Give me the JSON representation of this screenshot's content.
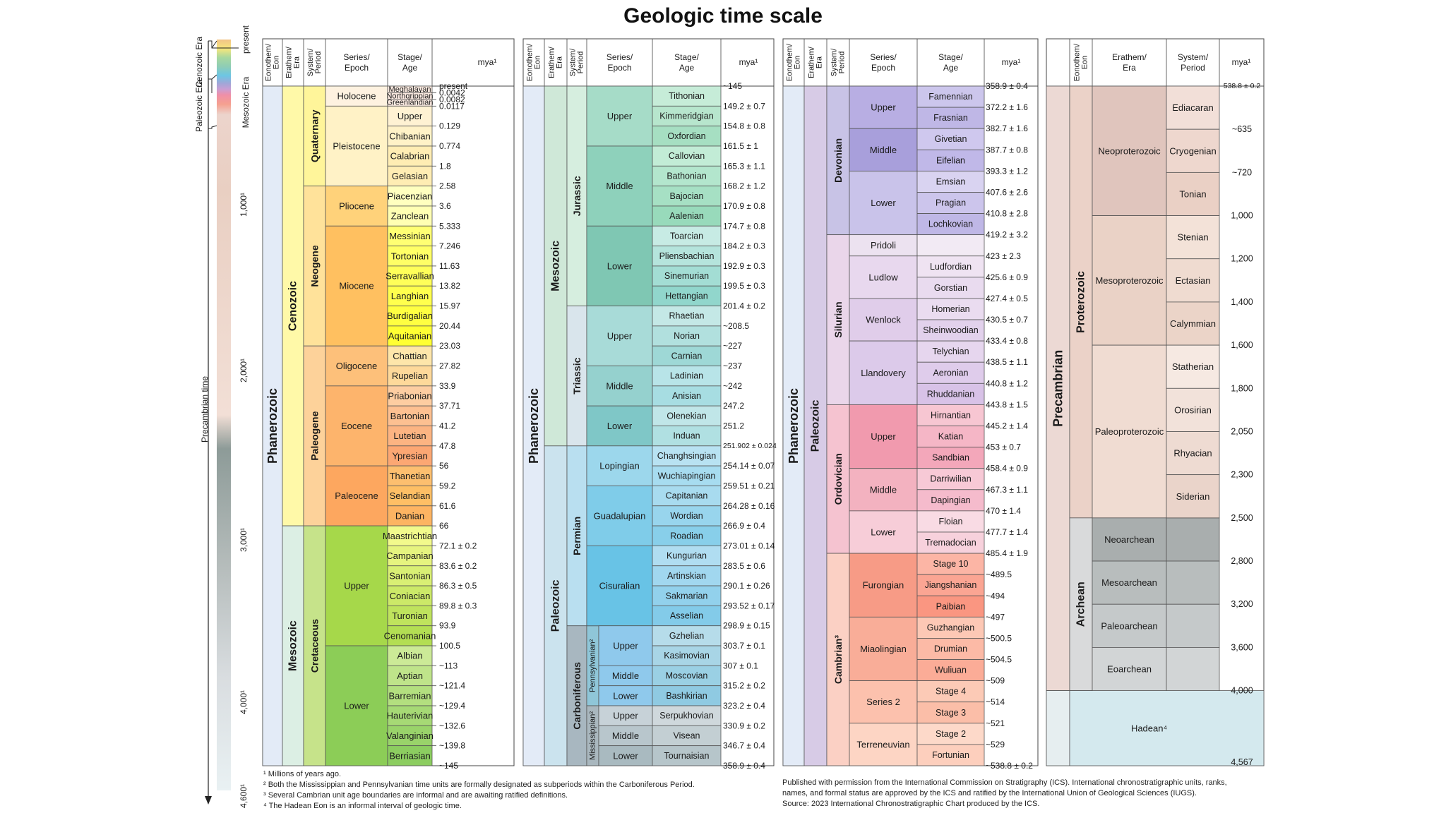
{
  "title": "Geologic time scale",
  "footnotes": [
    "¹ Millions of years ago.",
    "² Both the Mississippian and Pennsylvanian time units are formally designated as subperiods within the Carboniferous Period.",
    "³ Several Cambrian unit age boundaries are informal and are awaiting ratified definitions.",
    "⁴ The Hadean Eon is an informal interval of geologic time."
  ],
  "credits": [
    "Published with permission from the International Commission on Stratigraphy (ICS). International chronostratigraphic units, ranks,",
    "names, and formal status are approved by the ICS and ratified by the International Union of Geological Sciences (IUGS).",
    "Source: 2023 International Chronostratigraphic Chart produced by the ICS."
  ],
  "headers": {
    "eon": [
      "Eonothem/",
      "Eon"
    ],
    "era": [
      "Erathem/",
      "Era"
    ],
    "period": [
      "System/",
      "Period"
    ],
    "epoch": [
      "Series/",
      "Epoch"
    ],
    "stage": [
      "Stage/",
      "Age"
    ],
    "mya": "mya¹"
  },
  "timeline": {
    "eras": [
      "Cenozoic Era",
      "Mesozoic Era",
      "Paleozoic Era",
      "Precambrian time"
    ],
    "present": "present",
    "ticks": [
      "1,000¹",
      "2,000¹",
      "3,000¹",
      "4,000¹",
      "4,600¹"
    ],
    "colors": [
      "#f2c488",
      "#f7e67c",
      "#a7d89f",
      "#8fcdb5",
      "#6cc6e4",
      "#9fa7d8",
      "#c89ed4",
      "#f08fa7",
      "#f5a08f",
      "#ecd4cc"
    ]
  },
  "col1": {
    "eon": "Phanerozoic",
    "eras": [
      {
        "name": "Cenozoic",
        "from": 0,
        "to": 22
      },
      {
        "name": "Mesozoic",
        "from": 22,
        "to": 34
      }
    ],
    "periods": [
      {
        "name": "Quaternary",
        "from": 0,
        "to": 5
      },
      {
        "name": "Neogene",
        "from": 5,
        "to": 13
      },
      {
        "name": "Paleogene",
        "from": 13,
        "to": 22
      },
      {
        "name": "Cretaceous",
        "from": 22,
        "to": 34
      }
    ],
    "epochs": [
      {
        "name": "Holocene",
        "from": 0,
        "to": 1,
        "color": "#fef2e0"
      },
      {
        "name": "Pleistocene",
        "from": 1,
        "to": 5,
        "color": "#fff2c6"
      },
      {
        "name": "Pliocene",
        "from": 5,
        "to": 7,
        "color": "#ffd27a"
      },
      {
        "name": "Miocene",
        "from": 7,
        "to": 13,
        "color": "#ffc060"
      },
      {
        "name": "Oligocene",
        "from": 13,
        "to": 15,
        "color": "#fdc07a"
      },
      {
        "name": "Eocene",
        "from": 15,
        "to": 19,
        "color": "#fdb46c"
      },
      {
        "name": "Paleocene",
        "from": 19,
        "to": 22,
        "color": "#fda75f"
      },
      {
        "name": "Upper",
        "from": 22,
        "to": 28,
        "color": "#a6d84a"
      },
      {
        "name": "Lower",
        "from": 28,
        "to": 34,
        "color": "#8ccd57"
      }
    ],
    "stages": [
      {
        "name": "Meghalayan",
        "color": "#fdede3",
        "h": 0.34
      },
      {
        "name": "Northgrippian",
        "color": "#fdece3",
        "h": 0.33
      },
      {
        "name": "Greenlandian",
        "color": "#fdece3",
        "h": 0.33
      },
      {
        "name": "Upper",
        "color": "#fff2d3"
      },
      {
        "name": "Chibanian",
        "color": "#fff2c7"
      },
      {
        "name": "Calabrian",
        "color": "#ffedb3"
      },
      {
        "name": "Gelasian",
        "color": "#ffedb3"
      },
      {
        "name": "Piacenzian",
        "color": "#ffffbf"
      },
      {
        "name": "Zanclean",
        "color": "#ffffb3"
      },
      {
        "name": "Messinian",
        "color": "#ffff73"
      },
      {
        "name": "Tortonian",
        "color": "#ffff66"
      },
      {
        "name": "Serravallian",
        "color": "#ffff59"
      },
      {
        "name": "Langhian",
        "color": "#ffff4d"
      },
      {
        "name": "Burdigalian",
        "color": "#ffff41"
      },
      {
        "name": "Aquitanian",
        "color": "#ffff33"
      },
      {
        "name": "Chattian",
        "color": "#fee6aa"
      },
      {
        "name": "Rupelian",
        "color": "#fed99a"
      },
      {
        "name": "Priabonian",
        "color": "#fdcda1"
      },
      {
        "name": "Bartonian",
        "color": "#fdc091"
      },
      {
        "name": "Lutetian",
        "color": "#fcb482"
      },
      {
        "name": "Ypresian",
        "color": "#fca773"
      },
      {
        "name": "Thanetian",
        "color": "#fdbf6f"
      },
      {
        "name": "Selandian",
        "color": "#febf65"
      },
      {
        "name": "Danian",
        "color": "#fdb462"
      },
      {
        "name": "Maastrichtian",
        "color": "#f2fa8c"
      },
      {
        "name": "Campanian",
        "color": "#e6f47f"
      },
      {
        "name": "Santonian",
        "color": "#d9ef74"
      },
      {
        "name": "Coniacian",
        "color": "#cce968"
      },
      {
        "name": "Turonian",
        "color": "#bfe35d"
      },
      {
        "name": "Cenomanian",
        "color": "#b3de53"
      },
      {
        "name": "Albian",
        "color": "#ccea97"
      },
      {
        "name": "Aptian",
        "color": "#bfe48a"
      },
      {
        "name": "Barremian",
        "color": "#b3df7f"
      },
      {
        "name": "Hauterivian",
        "color": "#a6d975"
      },
      {
        "name": "Valanginian",
        "color": "#99d36a"
      },
      {
        "name": "Berriasian",
        "color": "#8ccd60"
      }
    ],
    "mya": [
      "present",
      "0.0042",
      "0.0082",
      "0.0117",
      "0.129",
      "0.774",
      "1.8",
      "2.58",
      "3.6",
      "5.333",
      "7.246",
      "11.63",
      "13.82",
      "15.97",
      "20.44",
      "23.03",
      "27.82",
      "33.9",
      "37.71",
      "41.2",
      "47.8",
      "56",
      "59.2",
      "61.6",
      "66",
      "72.1 ± 0.2",
      "83.6 ± 0.2",
      "86.3 ± 0.5",
      "89.8 ± 0.3",
      "93.9",
      "100.5",
      "~113",
      "~121.4",
      "~129.4",
      "~132.6",
      "~139.8",
      "~145"
    ]
  },
  "col2": {
    "eon": "Phanerozoic",
    "eras": [
      {
        "name": "Mesozoic",
        "from": 0,
        "to": 18
      },
      {
        "name": "Paleozoic",
        "from": 18,
        "to": 34
      }
    ],
    "periods": [
      {
        "name": "Jurassic",
        "from": 0,
        "to": 11
      },
      {
        "name": "Triassic",
        "from": 11,
        "to": 18
      },
      {
        "name": "Permian",
        "from": 18,
        "to": 27
      },
      {
        "name": "Carboniferous",
        "from": 27,
        "to": 34
      }
    ],
    "subperiods": [
      {
        "name": "Pennsylvanian²",
        "from": 27,
        "to": 31,
        "color": "#99c2b5"
      },
      {
        "name": "Mississippian²",
        "from": 31,
        "to": 34,
        "color": "#678f66"
      }
    ],
    "epochs": [
      {
        "name": "Upper",
        "from": 0,
        "to": 3,
        "color": "#b3e3ee"
      },
      {
        "name": "Middle",
        "from": 3,
        "to": 7,
        "color": "#80cfd8"
      },
      {
        "name": "Lower",
        "from": 7,
        "to": 11,
        "color": "#42aed0"
      },
      {
        "name": "Upper",
        "from": 11,
        "to": 14,
        "color": "#bd8cc3"
      },
      {
        "name": "Middle",
        "from": 14,
        "to": 16,
        "color": "#b168b1"
      },
      {
        "name": "Lower",
        "from": 16,
        "to": 18,
        "color": "#983999"
      },
      {
        "name": "Lopingian",
        "from": 18,
        "to": 20,
        "color": "#fba794"
      },
      {
        "name": "Guadalupian",
        "from": 20,
        "to": 23,
        "color": "#fb745c"
      },
      {
        "name": "Cisuralian",
        "from": 23,
        "to": 27,
        "color": "#ef5845"
      },
      {
        "name": "Upper",
        "from": 27,
        "to": 29,
        "color": "#bfd0ba"
      },
      {
        "name": "Middle",
        "from": 29,
        "to": 30,
        "color": "#a6c7b7"
      },
      {
        "name": "Lower",
        "from": 30,
        "to": 31,
        "color": "#8cbeb4"
      },
      {
        "name": "Upper",
        "from": 31,
        "to": 32,
        "color": "#b3be6c"
      },
      {
        "name": "Middle",
        "from": 32,
        "to": 33,
        "color": "#99b46c"
      },
      {
        "name": "Lower",
        "from": 33,
        "to": 34,
        "color": "#80ab6c"
      }
    ],
    "stages": [
      {
        "name": "Tithonian",
        "color": "#d9f1f7"
      },
      {
        "name": "Kimmeridgian",
        "color": "#ccecf4"
      },
      {
        "name": "Oxfordian",
        "color": "#bfe7f1"
      },
      {
        "name": "Callovian",
        "color": "#bfe7e5"
      },
      {
        "name": "Bathonian",
        "color": "#b3e2e3"
      },
      {
        "name": "Bajocian",
        "color": "#a6dde0"
      },
      {
        "name": "Aalenian",
        "color": "#9ad9dd"
      },
      {
        "name": "Toarcian",
        "color": "#99cee3"
      },
      {
        "name": "Pliensbachian",
        "color": "#80c5dd"
      },
      {
        "name": "Sinemurian",
        "color": "#67bcd8"
      },
      {
        "name": "Hettangian",
        "color": "#4eb3d3"
      },
      {
        "name": "Rhaetian",
        "color": "#e3b9db"
      },
      {
        "name": "Norian",
        "color": "#d6aad3"
      },
      {
        "name": "Carnian",
        "color": "#c99bcb"
      },
      {
        "name": "Ladinian",
        "color": "#c983bf"
      },
      {
        "name": "Anisian",
        "color": "#bc75b7"
      },
      {
        "name": "Olenekian",
        "color": "#b051a5"
      },
      {
        "name": "Induan",
        "color": "#a4469f"
      },
      {
        "name": "Changhsingian",
        "color": "#fcc0b2"
      },
      {
        "name": "Wuchiapingian",
        "color": "#fcb4a2"
      },
      {
        "name": "Capitanian",
        "color": "#fb9a85"
      },
      {
        "name": "Wordian",
        "color": "#fb8d76"
      },
      {
        "name": "Roadian",
        "color": "#fb8069"
      },
      {
        "name": "Kungurian",
        "color": "#e38776"
      },
      {
        "name": "Artinskian",
        "color": "#e37b68"
      },
      {
        "name": "Sakmarian",
        "color": "#e36f5c"
      },
      {
        "name": "Asselian",
        "color": "#e36350"
      },
      {
        "name": "Gzhelian",
        "color": "#ccd4c7"
      },
      {
        "name": "Kasimovian",
        "color": "#bfd0c5"
      },
      {
        "name": "Moscovian",
        "color": "#c7cbb9"
      },
      {
        "name": "Bashkirian",
        "color": "#99c2b5"
      },
      {
        "name": "Serpukhovian",
        "color": "#bfc26b"
      },
      {
        "name": "Visean",
        "color": "#a6b96c"
      },
      {
        "name": "Tournaisian",
        "color": "#8cb06c"
      }
    ],
    "mya": [
      "~145",
      "149.2 ± 0.7",
      "154.8 ± 0.8",
      "161.5 ± 1",
      "165.3 ± 1.1",
      "168.2 ± 1.2",
      "170.9 ± 0.8",
      "174.7 ± 0.8",
      "184.2 ± 0.3",
      "192.9 ± 0.3",
      "199.5 ± 0.3",
      "201.4 ± 0.2",
      "~208.5",
      "~227",
      "~237",
      "~242",
      "247.2",
      "251.2",
      "251.902 ± 0.024",
      "254.14 ± 0.07",
      "259.51 ± 0.21",
      "264.28 ± 0.16",
      "266.9 ± 0.4",
      "273.01 ± 0.14",
      "283.5 ± 0.6",
      "290.1 ± 0.26",
      "293.52 ± 0.17",
      "298.9 ± 0.15",
      "303.7 ± 0.1",
      "307 ± 0.1",
      "315.2 ± 0.2",
      "323.2 ± 0.4",
      "330.9 ± 0.2",
      "346.7 ± 0.4",
      "358.9 ± 0.4"
    ]
  },
  "col3": {
    "eon": "Phanerozoic",
    "era": "Paleozoic",
    "periods": [
      {
        "name": "Devonian",
        "from": 0,
        "to": 7
      },
      {
        "name": "Silurian",
        "from": 7,
        "to": 15
      },
      {
        "name": "Ordovician",
        "from": 15,
        "to": 22
      },
      {
        "name": "Cambrian³",
        "from": 22,
        "to": 32
      }
    ],
    "epochs": [
      {
        "name": "Upper",
        "from": 0,
        "to": 2,
        "color": "#f1e19d"
      },
      {
        "name": "Middle",
        "from": 2,
        "to": 4,
        "color": "#f1c868"
      },
      {
        "name": "Lower",
        "from": 4,
        "to": 7,
        "color": "#e5ac4d"
      },
      {
        "name": "Pridoli",
        "from": 7,
        "to": 8,
        "color": "#e6f5e1"
      },
      {
        "name": "Ludlow",
        "from": 8,
        "to": 10,
        "color": "#bfe6cf"
      },
      {
        "name": "Wenlock",
        "from": 10,
        "to": 12,
        "color": "#b3e1c2"
      },
      {
        "name": "Llandovery",
        "from": 12,
        "to": 15,
        "color": "#99d7b3"
      },
      {
        "name": "Upper",
        "from": 15,
        "to": 18,
        "color": "#7fca93"
      },
      {
        "name": "Middle",
        "from": 18,
        "to": 20,
        "color": "#4db47e"
      },
      {
        "name": "Lower",
        "from": 20,
        "to": 22,
        "color": "#1a9d6f"
      },
      {
        "name": "Furongian",
        "from": 22,
        "to": 25,
        "color": "#b3e095"
      },
      {
        "name": "Miaolingian",
        "from": 25,
        "to": 28,
        "color": "#a6cf86"
      },
      {
        "name": "Series 2",
        "from": 28,
        "to": 30,
        "color": "#99c078"
      },
      {
        "name": "Terreneuvian",
        "from": 30,
        "to": 32,
        "color": "#8cb06c"
      }
    ],
    "stages": [
      {
        "name": "Famennian",
        "color": "#f2edc5"
      },
      {
        "name": "Frasnian",
        "color": "#f2edad"
      },
      {
        "name": "Givetian",
        "color": "#f1e185"
      },
      {
        "name": "Eifelian",
        "color": "#f1d576"
      },
      {
        "name": "Emsian",
        "color": "#e5d075"
      },
      {
        "name": "Pragian",
        "color": "#e5c468"
      },
      {
        "name": "Lochkovian",
        "color": "#e5b75a"
      },
      {
        "name": "",
        "color": "#e6f5e1"
      },
      {
        "name": "Ludfordian",
        "color": "#d9f0df"
      },
      {
        "name": "Gorstian",
        "color": "#cce6d2"
      },
      {
        "name": "Homerian",
        "color": "#cce6c5"
      },
      {
        "name": "Sheinwoodian",
        "color": "#bfe6cf"
      },
      {
        "name": "Telychian",
        "color": "#bfe6c3"
      },
      {
        "name": "Aeronian",
        "color": "#b3e1b6"
      },
      {
        "name": "Rhuddanian",
        "color": "#a6dcb5"
      },
      {
        "name": "Hirnantian",
        "color": "#a6dbab"
      },
      {
        "name": "Katian",
        "color": "#99d69f"
      },
      {
        "name": "Sandbian",
        "color": "#8cd094"
      },
      {
        "name": "Darriwilian",
        "color": "#74c69c"
      },
      {
        "name": "Dapingian",
        "color": "#66c092"
      },
      {
        "name": "Floian",
        "color": "#41b087"
      },
      {
        "name": "Tremadocian",
        "color": "#33a97e"
      },
      {
        "name": "Stage 10",
        "color": "#e6f5c9"
      },
      {
        "name": "Jiangshanian",
        "color": "#d9f0bb"
      },
      {
        "name": "Paibian",
        "color": "#cce9ad"
      },
      {
        "name": "Guzhangian",
        "color": "#cce6b8"
      },
      {
        "name": "Drumian",
        "color": "#bfe0ab"
      },
      {
        "name": "Wuliuan",
        "color": "#b3d99e"
      },
      {
        "name": "Stage 4",
        "color": "#b3ca8e"
      },
      {
        "name": "Stage 3",
        "color": "#a6c583"
      },
      {
        "name": "Stage 2",
        "color": "#a6ba80"
      },
      {
        "name": "Fortunian",
        "color": "#99b575"
      }
    ],
    "mya": [
      "358.9 ± 0.4",
      "372.2 ± 1.6",
      "382.7 ± 1.6",
      "387.7 ± 0.8",
      "393.3 ± 1.2",
      "407.6 ± 2.6",
      "410.8 ± 2.8",
      "419.2 ± 3.2",
      "423 ± 2.3",
      "425.6 ± 0.9",
      "427.4 ± 0.5",
      "430.5 ± 0.7",
      "433.4 ± 0.8",
      "438.5 ± 1.1",
      "440.8 ± 1.2",
      "443.8 ± 1.5",
      "445.2 ± 1.4",
      "453 ± 0.7",
      "458.4 ± 0.9",
      "467.3 ± 1.1",
      "470 ± 1.4",
      "477.7 ± 1.4",
      "485.4 ± 1.9",
      "~489.5",
      "~494",
      "~497",
      "~500.5",
      "~504.5",
      "~509",
      "~514",
      "~521",
      "~529",
      "~538.8 ± 0.2"
    ]
  },
  "col4": {
    "super": "Precambrian",
    "eons": [
      {
        "name": "Proterozoic",
        "from": 0,
        "to": 10
      },
      {
        "name": "Archean",
        "from": 10,
        "to": 14
      },
      {
        "name": "Hadean⁴",
        "from": 14,
        "to": 15.6
      }
    ],
    "eras": [
      {
        "name": "Neoproterozoic",
        "from": 0,
        "to": 3,
        "color": "#feb342"
      },
      {
        "name": "Mesoproterozoic",
        "from": 3,
        "to": 6,
        "color": "#fdb462"
      },
      {
        "name": "Paleoproterozoic",
        "from": 6,
        "to": 10,
        "color": "#f74370"
      },
      {
        "name": "Neoarchean",
        "from": 10,
        "to": 11,
        "color": "#f99bc1"
      },
      {
        "name": "Mesoarchean",
        "from": 11,
        "to": 12,
        "color": "#f768a9"
      },
      {
        "name": "Paleoarchean",
        "from": 12,
        "to": 13,
        "color": "#f4449f"
      },
      {
        "name": "Eoarchean",
        "from": 13,
        "to": 14,
        "color": "#da037f"
      }
    ],
    "periods": [
      {
        "name": "Ediacaran",
        "color": "#fed96a"
      },
      {
        "name": "Cryogenian",
        "color": "#fecc5c"
      },
      {
        "name": "Tonian",
        "color": "#febf4e"
      },
      {
        "name": "Stenian",
        "color": "#fed99a"
      },
      {
        "name": "Ectasian",
        "color": "#fdcc8a"
      },
      {
        "name": "Calymmian",
        "color": "#fdc07a"
      },
      {
        "name": "Statherian",
        "color": "#f875a7"
      },
      {
        "name": "Orosirian",
        "color": "#f76898"
      },
      {
        "name": "Rhyacian",
        "color": "#f75b89"
      },
      {
        "name": "Siderian",
        "color": "#f74f7c"
      }
    ],
    "mya": [
      "538.8 ± 0.2",
      "~635",
      "~720",
      "1,000",
      "1,200",
      "1,400",
      "1,600",
      "1,800",
      "2,050",
      "2,300",
      "2,500",
      "2,800",
      "3,200",
      "3,600",
      "4,000",
      "4,567"
    ]
  }
}
